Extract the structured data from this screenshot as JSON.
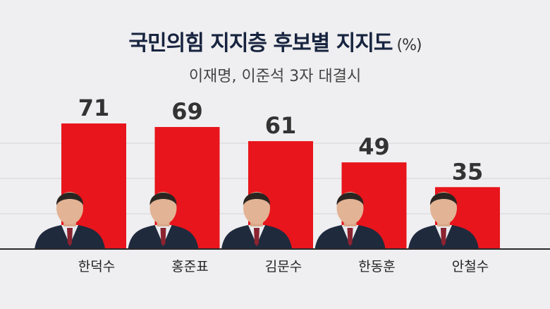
{
  "title": "국민의힘 지지층 후보별 지지도",
  "unit": "(%)",
  "subtitle": "이재명, 이준석 3자 대결시",
  "colors": {
    "bar": "#e8151c",
    "axis": "#2a2a2a",
    "grid": "#d6d5d8",
    "background": "#efeef0"
  },
  "chart_data": {
    "type": "bar",
    "title": "국민의힘 지지층 후보별 지지도",
    "subtitle": "이재명, 이준석 3자 대결시",
    "unit": "(%)",
    "categories": [
      "한덕수",
      "홍준표",
      "김문수",
      "한동훈",
      "안철수"
    ],
    "values": [
      71,
      69,
      61,
      49,
      35
    ],
    "ylim": [
      0,
      71
    ],
    "grid": true,
    "legend": "none"
  }
}
